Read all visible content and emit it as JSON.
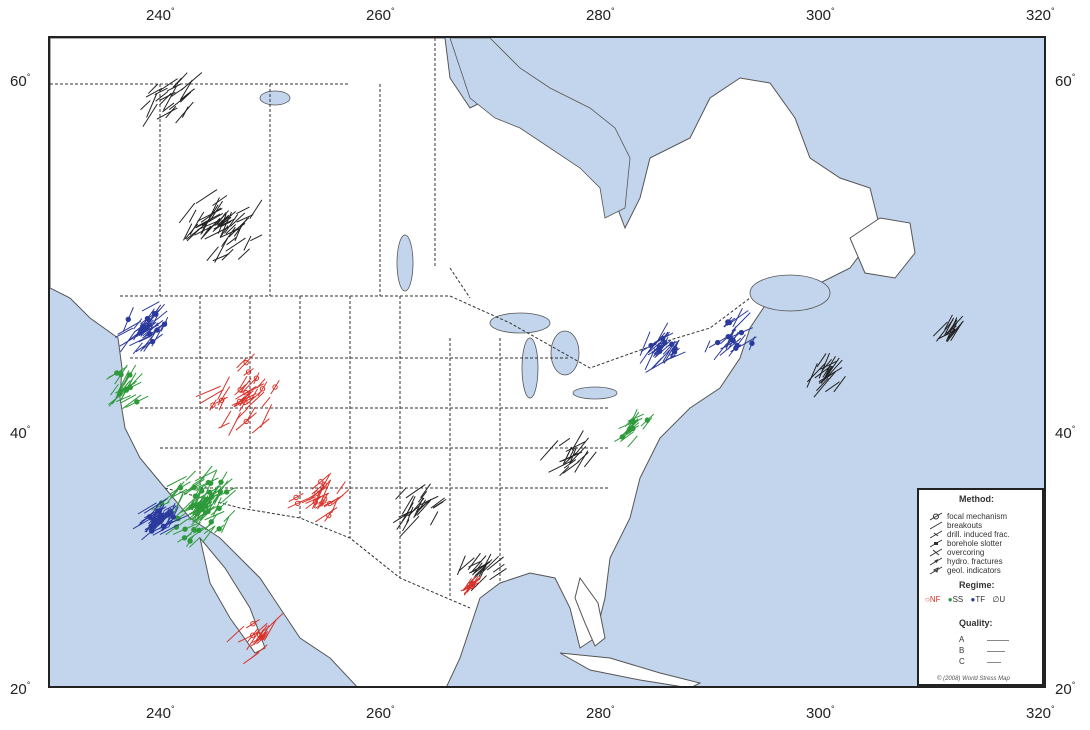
{
  "axes": {
    "x_ticks": [
      "240",
      "260",
      "280",
      "300",
      "320"
    ],
    "y_ticks": [
      "60",
      "40",
      "20"
    ],
    "degree": "°"
  },
  "legend": {
    "method_title": "Method:",
    "methods": [
      "focal mechanism",
      "breakouts",
      "drill. induced frac.",
      "borehole slotter",
      "overcoring",
      "hydro. fractures",
      "geol. indicators"
    ],
    "regime_title": "Regime:",
    "regimes": [
      {
        "label": "NF",
        "color": "#d8332b"
      },
      {
        "label": "SS",
        "color": "#2e9a3b"
      },
      {
        "label": "TF",
        "color": "#2b3a9c"
      },
      {
        "label": "U",
        "color": "#222222"
      }
    ],
    "quality_title": "Quality:",
    "qualities": [
      "A",
      "B",
      "C"
    ],
    "copyright": "© (2008) World Stress Map"
  },
  "colors": {
    "ocean": "#c3d5ec",
    "land": "#ffffff",
    "normal_fault": "#d8332b",
    "strike_slip": "#2e9a3b",
    "thrust_fault": "#2b3a9c",
    "unknown": "#222222"
  }
}
